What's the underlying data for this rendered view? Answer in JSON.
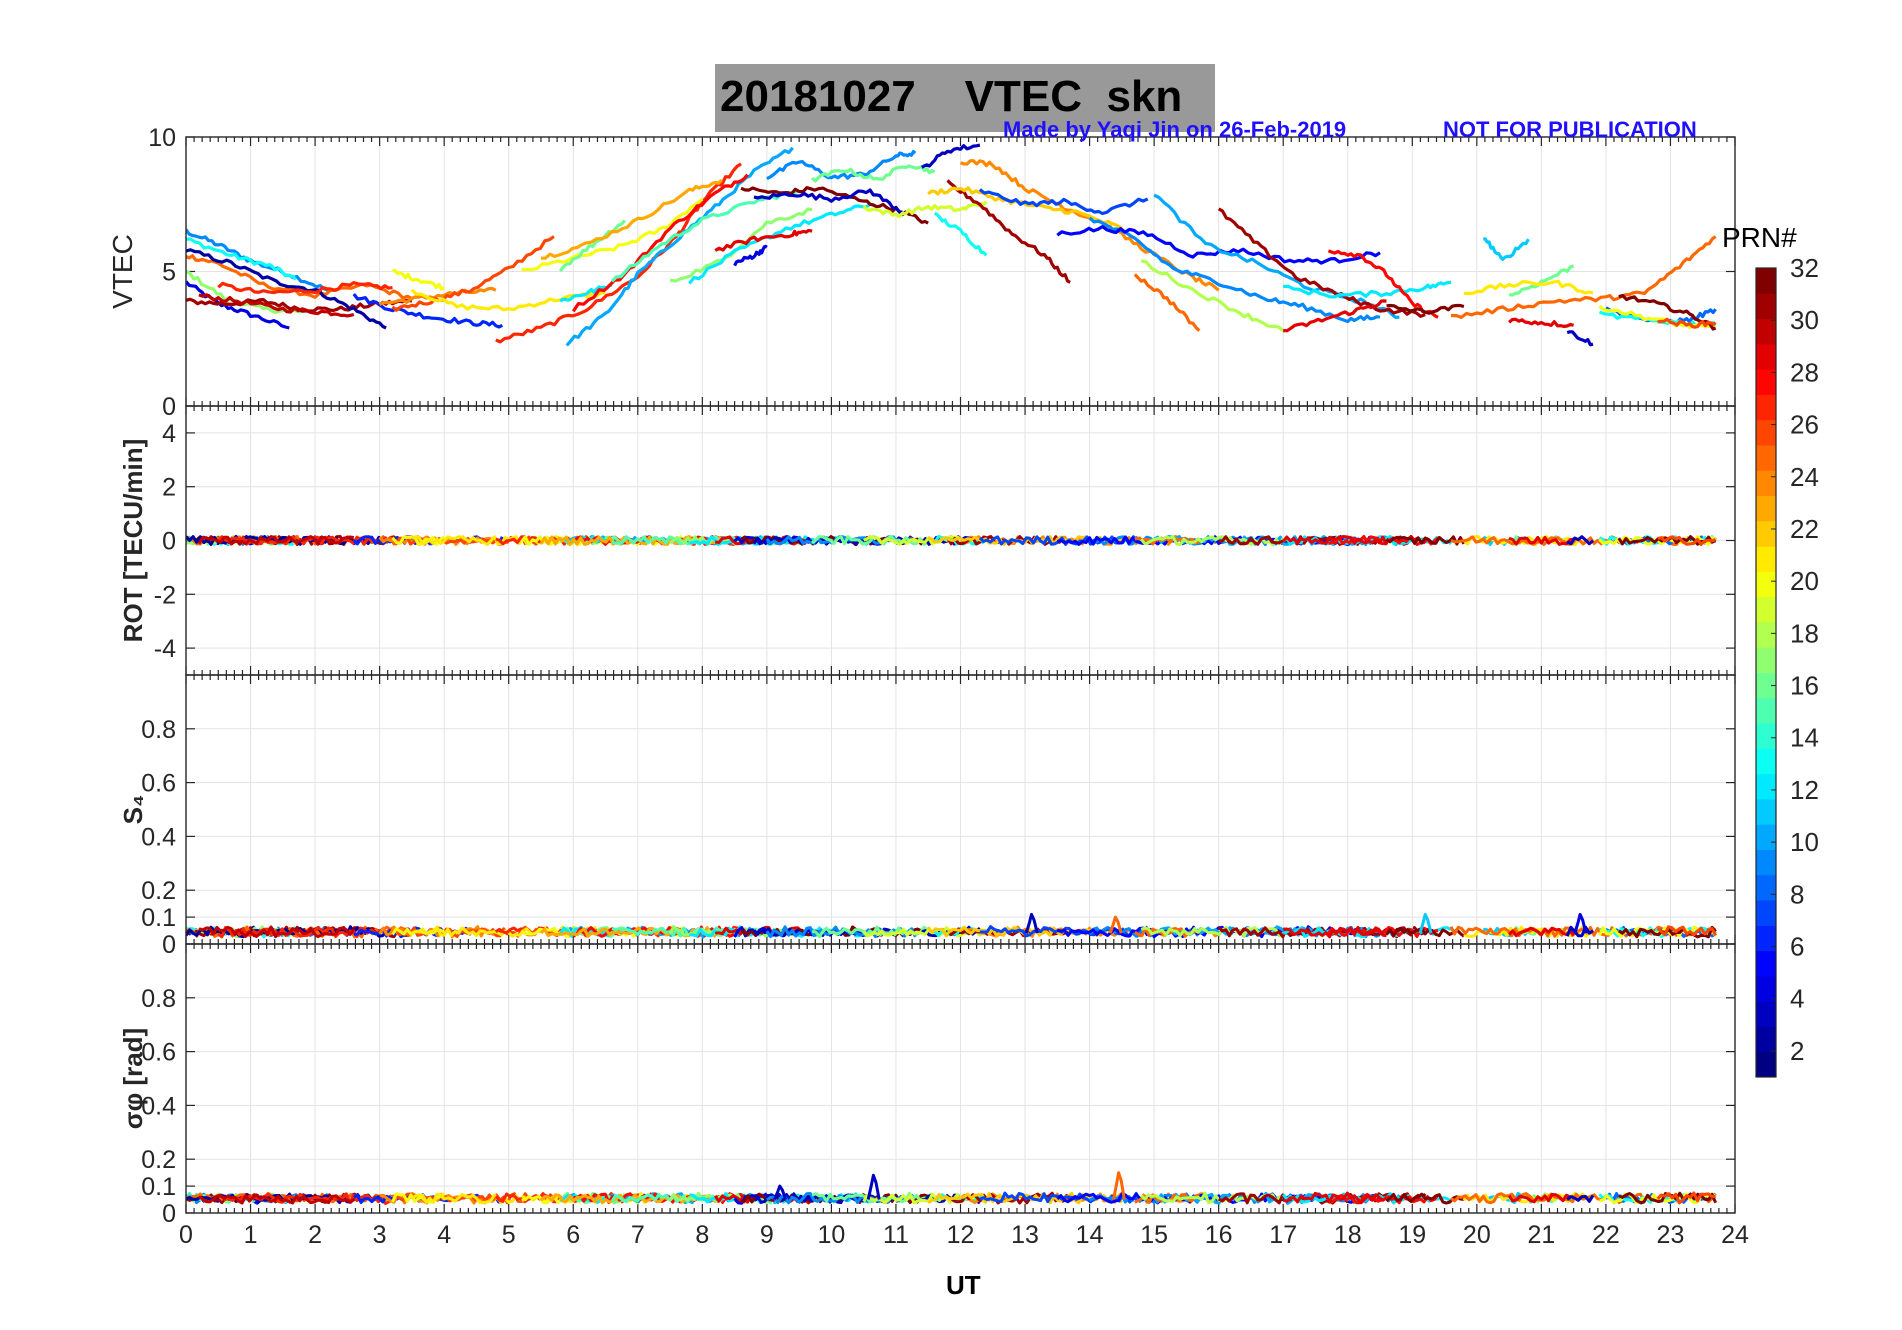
{
  "title": {
    "date": "20181027",
    "label": "VTEC",
    "station": "skn",
    "credit": "Made by Yaqi Jin on 26-Feb-2019",
    "notice": "NOT FOR PUBLICATION"
  },
  "colorbar": {
    "label": "PRN#",
    "ticks": [
      2,
      4,
      6,
      8,
      10,
      12,
      14,
      16,
      18,
      20,
      22,
      24,
      26,
      28,
      30,
      32
    ],
    "range": [
      1,
      32
    ],
    "colormap": "jet"
  },
  "chart_data": [
    {
      "panel": "vtec",
      "type": "line",
      "ylabel": "VTEC",
      "ylim": [
        0,
        10
      ],
      "yticks": [
        0,
        5,
        10
      ],
      "xlim": [
        0,
        24
      ],
      "grid": true,
      "series": [
        {
          "prn": 4,
          "x": [
            0,
            0.5,
            1.0,
            1.6
          ],
          "y": [
            4.6,
            3.8,
            3.4,
            2.9
          ]
        },
        {
          "prn": 9,
          "x": [
            0,
            0.5,
            1.0,
            1.6,
            2.2
          ],
          "y": [
            6.5,
            6.0,
            5.4,
            4.9,
            4.3
          ]
        },
        {
          "prn": 13,
          "x": [
            0,
            0.7,
            1.3,
            1.7
          ],
          "y": [
            6.2,
            5.6,
            5.2,
            4.7
          ]
        },
        {
          "prn": 17,
          "x": [
            0,
            0.6,
            1.2,
            1.8
          ],
          "y": [
            5.0,
            4.0,
            3.6,
            3.5
          ]
        },
        {
          "prn": 31,
          "x": [
            0,
            0.6,
            1.2,
            1.8,
            2.4,
            3.0,
            3.5
          ],
          "y": [
            3.9,
            3.8,
            3.9,
            3.6,
            3.6,
            3.8,
            3.9
          ]
        },
        {
          "prn": 25,
          "x": [
            0,
            0.5,
            1.2,
            2.0,
            2.8,
            3.5
          ],
          "y": [
            5.6,
            5.3,
            4.5,
            4.1,
            4.5,
            4.0
          ]
        },
        {
          "prn": 2,
          "x": [
            0,
            0.7,
            1.4,
            2.0,
            2.6,
            3.1
          ],
          "y": [
            5.8,
            5.3,
            4.6,
            4.3,
            3.6,
            2.9
          ]
        },
        {
          "prn": 27,
          "x": [
            0.5,
            1.2,
            2.0,
            2.6,
            3.2
          ],
          "y": [
            4.5,
            4.2,
            4.3,
            4.5,
            4.4
          ]
        },
        {
          "prn": 30,
          "x": [
            0.2,
            0.8,
            1.5,
            2.1,
            2.6
          ],
          "y": [
            4.1,
            3.9,
            3.6,
            3.5,
            3.4
          ]
        },
        {
          "prn": 6,
          "x": [
            2.6,
            3.2,
            3.8,
            4.4,
            4.9
          ],
          "y": [
            4.1,
            3.6,
            3.3,
            3.1,
            3.0
          ]
        },
        {
          "prn": 24,
          "x": [
            3.0,
            3.6,
            4.2,
            4.8
          ],
          "y": [
            3.8,
            4.0,
            4.2,
            4.3
          ]
        },
        {
          "prn": 26,
          "x": [
            3.2,
            3.8,
            4.4,
            5.0,
            5.7
          ],
          "y": [
            3.6,
            3.9,
            4.3,
            5.1,
            6.3
          ]
        },
        {
          "prn": 20,
          "x": [
            3.2,
            3.6,
            4.0
          ],
          "y": [
            5.0,
            4.7,
            4.4
          ]
        },
        {
          "prn": 21,
          "x": [
            3.5,
            4.2,
            5.0,
            5.8,
            6.5
          ],
          "y": [
            4.3,
            3.7,
            3.6,
            4.0,
            4.2
          ]
        },
        {
          "prn": 27,
          "x": [
            4.8,
            5.5,
            6.2,
            7.0,
            7.6,
            8.0,
            8.6
          ],
          "y": [
            2.4,
            2.9,
            3.6,
            4.8,
            6.3,
            7.6,
            9.0
          ]
        },
        {
          "prn": 20,
          "x": [
            5.2,
            6.0,
            6.7,
            7.4,
            8.0
          ],
          "y": [
            5.0,
            5.5,
            5.9,
            6.6,
            7.7
          ]
        },
        {
          "prn": 10,
          "x": [
            5.9,
            6.5,
            7.0,
            7.6,
            8.2,
            8.8,
            9.4
          ],
          "y": [
            2.3,
            3.4,
            4.9,
            6.2,
            7.4,
            8.7,
            9.6
          ]
        },
        {
          "prn": 16,
          "x": [
            5.8,
            6.3,
            6.8
          ],
          "y": [
            5.1,
            6.0,
            6.9
          ]
        },
        {
          "prn": 12,
          "x": [
            5.8,
            6.2,
            6.6
          ],
          "y": [
            3.9,
            4.2,
            4.5
          ]
        },
        {
          "prn": 28,
          "x": [
            6.0,
            6.8,
            7.5,
            8.2,
            8.7
          ],
          "y": [
            3.6,
            4.9,
            6.6,
            7.9,
            8.6
          ]
        },
        {
          "prn": 23,
          "x": [
            5.5,
            6.2,
            7.0,
            7.8,
            8.3
          ],
          "y": [
            5.5,
            6.0,
            6.9,
            8.0,
            8.4
          ]
        },
        {
          "prn": 15,
          "x": [
            6.6,
            7.3,
            8.0,
            8.8,
            9.5
          ],
          "y": [
            4.6,
            5.9,
            6.9,
            7.6,
            8.0
          ]
        },
        {
          "prn": 17,
          "x": [
            7.5,
            8.3,
            9.0,
            9.7
          ],
          "y": [
            4.6,
            5.4,
            6.8,
            7.3
          ]
        },
        {
          "prn": 12,
          "x": [
            7.8,
            8.5,
            9.3,
            10.0,
            10.6
          ],
          "y": [
            4.6,
            5.7,
            6.6,
            7.1,
            7.5
          ]
        },
        {
          "prn": 29,
          "x": [
            8.2,
            8.8,
            9.4,
            9.7
          ],
          "y": [
            5.8,
            6.2,
            6.4,
            6.5
          ]
        },
        {
          "prn": 4,
          "x": [
            8.5,
            8.8,
            9.0
          ],
          "y": [
            5.3,
            5.6,
            5.9
          ]
        },
        {
          "prn": 32,
          "x": [
            8.6,
            9.2,
            9.8,
            10.5,
            11.0,
            11.5
          ],
          "y": [
            8.1,
            7.9,
            8.1,
            7.6,
            7.3,
            6.8
          ]
        },
        {
          "prn": 3,
          "x": [
            8.8,
            9.4,
            10.0,
            10.6,
            11.1
          ],
          "y": [
            7.7,
            7.9,
            7.7,
            8.0,
            7.2
          ]
        },
        {
          "prn": 9,
          "x": [
            9.0,
            9.5,
            10.0,
            10.5,
            11.0,
            11.3
          ],
          "y": [
            8.5,
            9.1,
            8.5,
            8.6,
            9.3,
            9.4
          ]
        },
        {
          "prn": 16,
          "x": [
            9.7,
            10.2,
            10.7,
            11.2,
            11.6
          ],
          "y": [
            8.4,
            8.8,
            8.4,
            9.0,
            8.7
          ]
        },
        {
          "prn": 3,
          "x": [
            11.4,
            11.8,
            12.3
          ],
          "y": [
            8.8,
            9.5,
            9.7
          ]
        },
        {
          "prn": 19,
          "x": [
            10.5,
            11.0,
            11.5,
            12.0,
            12.4
          ],
          "y": [
            7.4,
            7.1,
            7.4,
            7.3,
            7.6
          ]
        },
        {
          "prn": 13,
          "x": [
            11.6,
            12.0,
            12.4
          ],
          "y": [
            7.1,
            6.5,
            5.6
          ]
        },
        {
          "prn": 24,
          "x": [
            12.0,
            12.5,
            13.0,
            13.6,
            14.2,
            14.8,
            15.5,
            16.0
          ],
          "y": [
            9.1,
            9.0,
            8.1,
            7.4,
            6.8,
            5.9,
            4.9,
            4.3
          ]
        },
        {
          "prn": 31,
          "x": [
            11.8,
            12.3,
            12.8,
            13.3,
            13.7
          ],
          "y": [
            8.3,
            7.5,
            6.4,
            5.6,
            4.6
          ]
        },
        {
          "prn": 22,
          "x": [
            11.5,
            12.0,
            12.6,
            13.2,
            13.8,
            14.5
          ],
          "y": [
            7.9,
            8.1,
            7.7,
            7.4,
            7.2,
            6.6
          ]
        },
        {
          "prn": 7,
          "x": [
            12.3,
            13.0,
            13.6,
            14.2,
            14.9
          ],
          "y": [
            8.0,
            7.5,
            7.6,
            7.2,
            7.7
          ]
        },
        {
          "prn": 9,
          "x": [
            14.0,
            14.7,
            15.3,
            16.0,
            16.7,
            17.3,
            18.0,
            18.5
          ],
          "y": [
            7.0,
            6.2,
            5.1,
            4.6,
            4.0,
            3.7,
            3.2,
            3.3
          ]
        },
        {
          "prn": 5,
          "x": [
            13.5,
            14.2,
            14.9,
            15.6,
            16.3,
            17.1,
            17.8,
            18.5
          ],
          "y": [
            6.4,
            6.6,
            6.4,
            5.6,
            5.8,
            5.4,
            5.4,
            5.7
          ]
        },
        {
          "prn": 10,
          "x": [
            15.0,
            15.8,
            16.6,
            17.4,
            18.2,
            18.8
          ],
          "y": [
            7.9,
            6.0,
            5.3,
            4.4,
            3.9,
            3.3
          ]
        },
        {
          "prn": 25,
          "x": [
            14.7,
            15.2,
            15.7
          ],
          "y": [
            4.9,
            4.0,
            2.8
          ]
        },
        {
          "prn": 18,
          "x": [
            14.8,
            15.6,
            16.4,
            17.0
          ],
          "y": [
            5.4,
            4.3,
            3.4,
            2.8
          ]
        },
        {
          "prn": 31,
          "x": [
            16.0,
            16.6,
            17.2,
            17.9,
            18.5,
            19.2
          ],
          "y": [
            7.3,
            6.0,
            4.8,
            4.1,
            3.6,
            3.4
          ]
        },
        {
          "prn": 12,
          "x": [
            17.0,
            17.8,
            18.6,
            19.2,
            19.6
          ],
          "y": [
            4.4,
            4.1,
            4.2,
            4.4,
            4.6
          ]
        },
        {
          "prn": 28,
          "x": [
            17.7,
            18.2,
            18.6,
            19.0,
            19.4
          ],
          "y": [
            5.8,
            5.6,
            4.9,
            3.8,
            3.3
          ]
        },
        {
          "prn": 29,
          "x": [
            17.0,
            17.6,
            18.2,
            18.6
          ],
          "y": [
            2.8,
            3.2,
            3.6,
            3.9
          ]
        },
        {
          "prn": 32,
          "x": [
            18.6,
            19.2,
            19.8
          ],
          "y": [
            3.7,
            3.5,
            3.7
          ]
        },
        {
          "prn": 11,
          "x": [
            20.1,
            20.4,
            20.8
          ],
          "y": [
            6.3,
            5.4,
            6.2
          ]
        },
        {
          "prn": 16,
          "x": [
            20.5,
            21.0,
            21.5
          ],
          "y": [
            4.1,
            4.6,
            5.2
          ]
        },
        {
          "prn": 21,
          "x": [
            19.8,
            20.5,
            21.2,
            21.8
          ],
          "y": [
            4.2,
            4.5,
            4.6,
            4.2
          ]
        },
        {
          "prn": 25,
          "x": [
            19.6,
            20.4,
            21.2,
            22.0,
            22.6,
            23.2,
            23.7
          ],
          "y": [
            3.3,
            3.6,
            3.9,
            4.0,
            4.2,
            5.3,
            6.3
          ]
        },
        {
          "prn": 29,
          "x": [
            20.5,
            21.0,
            21.5
          ],
          "y": [
            3.2,
            3.1,
            3.0
          ]
        },
        {
          "prn": 3,
          "x": [
            21.4,
            21.8
          ],
          "y": [
            2.8,
            2.3
          ]
        },
        {
          "prn": 8,
          "x": [
            22.0,
            22.8,
            23.3,
            23.7
          ],
          "y": [
            3.6,
            3.1,
            3.2,
            3.6
          ]
        },
        {
          "prn": 13,
          "x": [
            21.9,
            22.6,
            23.2,
            23.7
          ],
          "y": [
            3.4,
            3.2,
            3.1,
            3.0
          ]
        },
        {
          "prn": 20,
          "x": [
            21.9,
            22.6,
            23.2,
            23.7
          ],
          "y": [
            3.7,
            3.3,
            3.0,
            2.9
          ]
        },
        {
          "prn": 32,
          "x": [
            22.2,
            22.8,
            23.3,
            23.7
          ],
          "y": [
            4.1,
            3.8,
            3.4,
            2.9
          ]
        },
        {
          "prn": 26,
          "x": [
            22.8,
            23.3,
            23.7
          ],
          "y": [
            3.2,
            3.0,
            3.1
          ]
        }
      ]
    },
    {
      "panel": "rot",
      "type": "line",
      "ylabel": "ROT [TECU/min]",
      "ylim": [
        -5,
        5
      ],
      "yticks": [
        -4,
        -2,
        0,
        2,
        4
      ],
      "xlim": [
        0,
        24
      ],
      "grid": true,
      "baseline": 0,
      "noise_amplitude": 0.15,
      "coverage": [
        0,
        23.75
      ]
    },
    {
      "panel": "s4",
      "type": "line",
      "ylabel": "S₄",
      "ylim": [
        0,
        1
      ],
      "yticks": [
        0,
        0.1,
        0.2,
        0.4,
        0.6,
        0.8
      ],
      "xlim": [
        0,
        24
      ],
      "grid": true,
      "baseline": 0.04,
      "peaks": [
        {
          "x": 13.1,
          "y": 0.11,
          "prn": 3
        },
        {
          "x": 14.4,
          "y": 0.1,
          "prn": 25
        },
        {
          "x": 19.2,
          "y": 0.11,
          "prn": 11
        },
        {
          "x": 21.6,
          "y": 0.11,
          "prn": 4
        }
      ]
    },
    {
      "panel": "sigma_phi",
      "type": "line",
      "ylabel": "σφ [rad]",
      "ylim": [
        0,
        1
      ],
      "yticks": [
        0,
        0.1,
        0.2,
        0.4,
        0.6,
        0.8
      ],
      "xlim": [
        0,
        24
      ],
      "grid": true,
      "baseline": 0.05,
      "peaks": [
        {
          "x": 10.65,
          "y": 0.14,
          "prn": 3
        },
        {
          "x": 14.45,
          "y": 0.15,
          "prn": 25
        },
        {
          "x": 9.2,
          "y": 0.1,
          "prn": 3
        }
      ]
    }
  ],
  "xaxis": {
    "label": "UT",
    "ticks": [
      0,
      1,
      2,
      3,
      4,
      5,
      6,
      7,
      8,
      9,
      10,
      11,
      12,
      13,
      14,
      15,
      16,
      17,
      18,
      19,
      20,
      21,
      22,
      23,
      24
    ]
  }
}
